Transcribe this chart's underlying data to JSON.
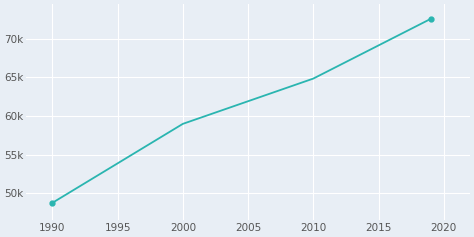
{
  "years": [
    1990,
    2000,
    2010,
    2019
  ],
  "population": [
    48735,
    58977,
    64849,
    72592
  ],
  "line_color": "#2ab5b0",
  "marker_color": "#2ab5b0",
  "bg_color": "#e8eef5",
  "grid_color": "#ffffff",
  "yticks": [
    50000,
    55000,
    60000,
    65000,
    70000
  ],
  "ytick_labels": [
    "50k",
    "55k",
    "60k",
    "65k",
    "70k"
  ],
  "xticks": [
    1990,
    1995,
    2000,
    2005,
    2010,
    2015,
    2020
  ],
  "xlim": [
    1988.0,
    2022.0
  ],
  "ylim": [
    46500,
    74500
  ]
}
